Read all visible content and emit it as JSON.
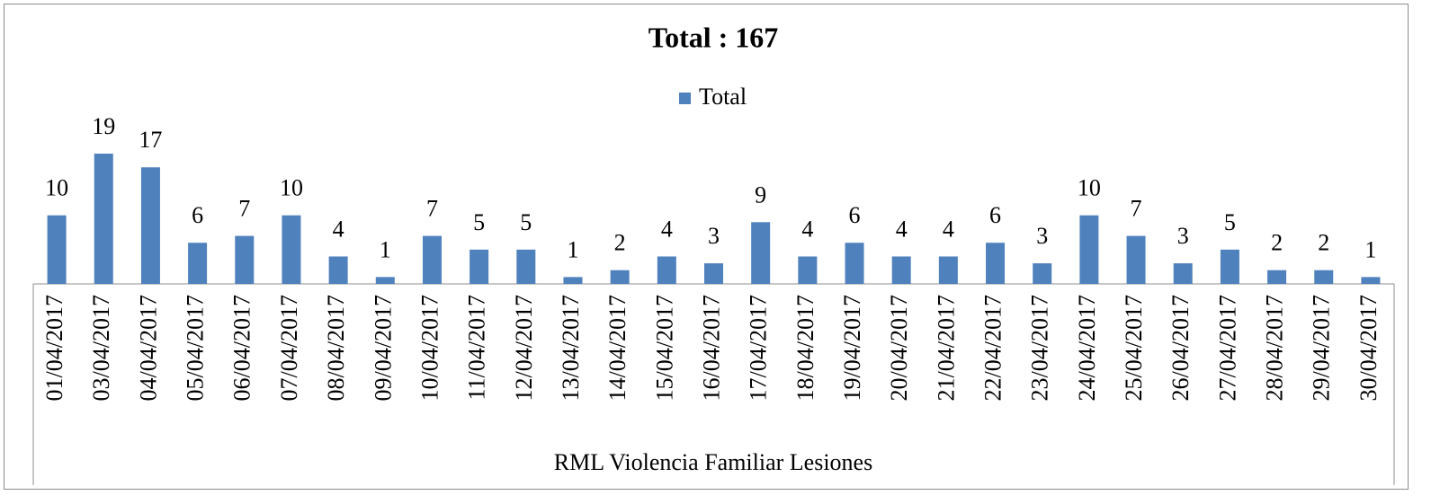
{
  "chart_data": {
    "type": "bar",
    "title": "Total : 167",
    "x_group_label": "RML Violencia Familiar Lesiones",
    "categories": [
      "01/04/2017",
      "03/04/2017",
      "04/04/2017",
      "05/04/2017",
      "06/04/2017",
      "07/04/2017",
      "08/04/2017",
      "09/04/2017",
      "10/04/2017",
      "11/04/2017",
      "12/04/2017",
      "13/04/2017",
      "14/04/2017",
      "15/04/2017",
      "16/04/2017",
      "17/04/2017",
      "18/04/2017",
      "19/04/2017",
      "20/04/2017",
      "21/04/2017",
      "22/04/2017",
      "23/04/2017",
      "24/04/2017",
      "25/04/2017",
      "26/04/2017",
      "27/04/2017",
      "28/04/2017",
      "29/04/2017",
      "30/04/2017"
    ],
    "series": [
      {
        "name": "Total",
        "color": "#4f81bd",
        "values": [
          10,
          19,
          17,
          6,
          7,
          10,
          4,
          1,
          7,
          5,
          5,
          1,
          2,
          4,
          3,
          9,
          4,
          6,
          4,
          4,
          6,
          3,
          10,
          7,
          3,
          5,
          2,
          2,
          1
        ]
      }
    ],
    "legend": "top"
  }
}
